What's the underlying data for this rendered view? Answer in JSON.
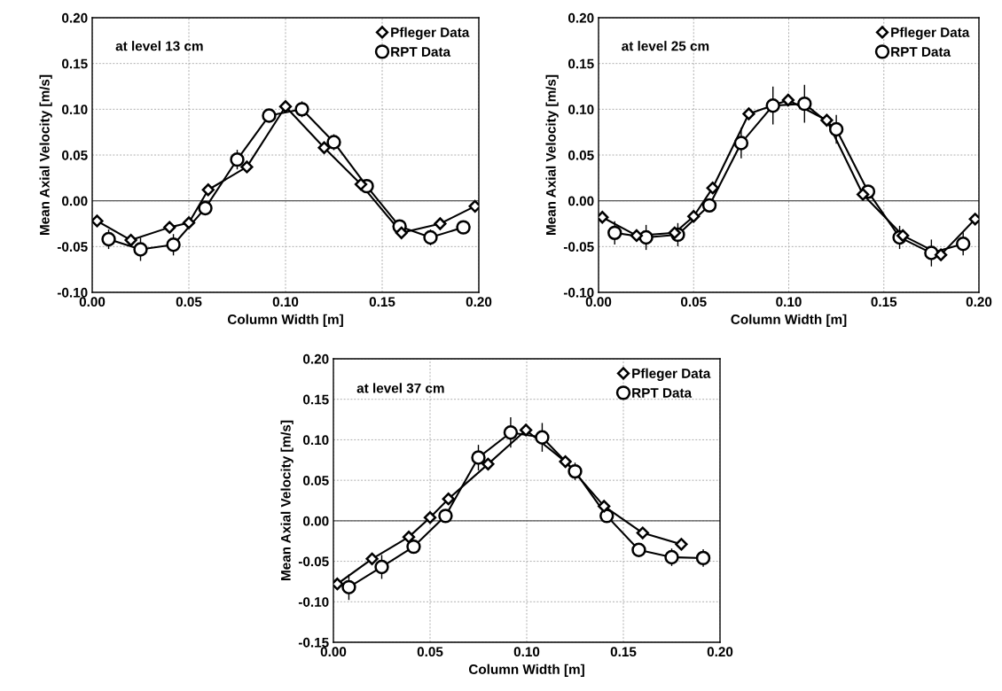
{
  "chart_data": [
    {
      "type": "line",
      "xlabel": "Column Width [m]",
      "ylabel": "Mean Axial Velocity [m/s]",
      "annotations": [
        "at level 13 cm"
      ],
      "ref_lines": [
        {
          "axis": "y",
          "value": 0,
          "color": "#555555"
        }
      ],
      "xlim": [
        0,
        0.2
      ],
      "ylim": [
        -0.1,
        0.2
      ],
      "xticks": [
        {
          "value": 0,
          "label": "0.00"
        },
        {
          "value": 0.05,
          "label": "0.05"
        },
        {
          "value": 0.1,
          "label": "0.10"
        },
        {
          "value": 0.15,
          "label": "0.15"
        },
        {
          "value": 0.2,
          "label": "0.20"
        }
      ],
      "yticks": [
        {
          "value": -0.1,
          "label": "-0.10"
        },
        {
          "value": -0.05,
          "label": "-0.05"
        },
        {
          "value": 0,
          "label": "0.00"
        },
        {
          "value": 0.05,
          "label": "0.05"
        },
        {
          "value": 0.1,
          "label": "0.10"
        },
        {
          "value": 0.15,
          "label": "0.15"
        },
        {
          "value": 0.2,
          "label": "0.20"
        }
      ],
      "grid": true,
      "legend": "top right",
      "series": [
        {
          "name": "Pfleger Data",
          "color": "#000000",
          "marker": "diamond",
          "x": [
            0.0025,
            0.02,
            0.04,
            0.05,
            0.06,
            0.08,
            0.1,
            0.12,
            0.139,
            0.16,
            0.18,
            0.198
          ],
          "values": [
            -0.022,
            -0.043,
            -0.029,
            -0.024,
            0.012,
            0.037,
            0.103,
            0.058,
            0.018,
            -0.035,
            -0.025,
            -0.006
          ]
        },
        {
          "name": "RPT Data",
          "color": "#000000",
          "marker": "circle",
          "x": [
            0.0085,
            0.025,
            0.042,
            0.0585,
            0.075,
            0.0915,
            0.1085,
            0.125,
            0.142,
            0.159,
            0.175,
            0.192
          ],
          "values": [
            -0.042,
            -0.053,
            -0.048,
            -0.008,
            0.045,
            0.093,
            0.1,
            0.064,
            0.016,
            -0.028,
            -0.04,
            -0.029
          ],
          "errors": [
            0.01,
            0.012,
            0.011,
            null,
            0.01,
            null,
            0.008,
            0.008,
            null,
            null,
            0.008,
            0.006
          ]
        }
      ]
    },
    {
      "type": "line",
      "xlabel": "Column Width [m]",
      "ylabel": "Mean Axial Velocity [m/s]",
      "annotations": [
        "at level 25 cm"
      ],
      "ref_lines": [
        {
          "axis": "y",
          "value": 0,
          "color": "#555555"
        }
      ],
      "xlim": [
        0,
        0.2
      ],
      "ylim": [
        -0.1,
        0.2
      ],
      "xticks": [
        {
          "value": 0,
          "label": "0.00"
        },
        {
          "value": 0.05,
          "label": "0.05"
        },
        {
          "value": 0.1,
          "label": "0.10"
        },
        {
          "value": 0.15,
          "label": "0.15"
        },
        {
          "value": 0.2,
          "label": "0.20"
        }
      ],
      "yticks": [
        {
          "value": -0.1,
          "label": "-0.10"
        },
        {
          "value": -0.05,
          "label": "-0.05"
        },
        {
          "value": 0,
          "label": "0.00"
        },
        {
          "value": 0.05,
          "label": "0.05"
        },
        {
          "value": 0.1,
          "label": "0.10"
        },
        {
          "value": 0.15,
          "label": "0.15"
        },
        {
          "value": 0.2,
          "label": "0.20"
        }
      ],
      "grid": true,
      "legend": "top right",
      "series": [
        {
          "name": "Pfleger Data",
          "color": "#000000",
          "marker": "diamond",
          "x": [
            0.002,
            0.02,
            0.04,
            0.05,
            0.06,
            0.079,
            0.0997,
            0.12,
            0.139,
            0.16,
            0.18,
            0.198
          ],
          "values": [
            -0.018,
            -0.038,
            -0.035,
            -0.017,
            0.014,
            0.095,
            0.11,
            0.088,
            0.007,
            -0.038,
            -0.059,
            -0.02
          ]
        },
        {
          "name": "RPT Data",
          "color": "#000000",
          "marker": "circle",
          "x": [
            0.0085,
            0.025,
            0.0417,
            0.0583,
            0.075,
            0.0917,
            0.1083,
            0.125,
            0.1417,
            0.1583,
            0.175,
            0.1917
          ],
          "values": [
            -0.035,
            -0.04,
            -0.037,
            -0.005,
            0.063,
            0.104,
            0.106,
            0.078,
            0.01,
            -0.04,
            -0.057,
            -0.047
          ],
          "errors": [
            0.012,
            0.013,
            0.012,
            null,
            0.016,
            0.02,
            0.02,
            0.015,
            null,
            0.012,
            0.014,
            0.012
          ]
        }
      ]
    },
    {
      "type": "line",
      "xlabel": "Column Width [m]",
      "ylabel": "Mean Axial Velocity [m/s]",
      "annotations": [
        "at level 37 cm"
      ],
      "ref_lines": [
        {
          "axis": "y",
          "value": 0,
          "color": "#555555"
        }
      ],
      "xlim": [
        0,
        0.2
      ],
      "ylim": [
        -0.15,
        0.2
      ],
      "xticks": [
        {
          "value": 0,
          "label": "0.00"
        },
        {
          "value": 0.05,
          "label": "0.05"
        },
        {
          "value": 0.1,
          "label": "0.10"
        },
        {
          "value": 0.15,
          "label": "0.15"
        },
        {
          "value": 0.2,
          "label": "0.20"
        }
      ],
      "yticks": [
        {
          "value": -0.15,
          "label": "-0.15"
        },
        {
          "value": -0.1,
          "label": "-0.10"
        },
        {
          "value": -0.05,
          "label": "-0.05"
        },
        {
          "value": 0,
          "label": "0.00"
        },
        {
          "value": 0.05,
          "label": "0.05"
        },
        {
          "value": 0.1,
          "label": "0.10"
        },
        {
          "value": 0.15,
          "label": "0.15"
        },
        {
          "value": 0.2,
          "label": "0.20"
        }
      ],
      "grid": true,
      "legend": "top right",
      "series": [
        {
          "name": "Pfleger Data",
          "color": "#000000",
          "marker": "diamond",
          "x": [
            0.002,
            0.02,
            0.039,
            0.05,
            0.0595,
            0.08,
            0.0996,
            0.12,
            0.14,
            0.16,
            0.18
          ],
          "values": [
            -0.078,
            -0.047,
            -0.02,
            0.004,
            0.027,
            0.07,
            0.112,
            0.073,
            0.018,
            -0.015,
            -0.029
          ]
        },
        {
          "name": "RPT Data",
          "color": "#000000",
          "marker": "circle",
          "x": [
            0.008,
            0.025,
            0.0415,
            0.058,
            0.075,
            0.0917,
            0.108,
            0.125,
            0.1414,
            0.158,
            0.175,
            0.1913
          ],
          "values": [
            -0.082,
            -0.057,
            -0.032,
            0.006,
            0.078,
            0.109,
            0.103,
            0.061,
            0.006,
            -0.036,
            -0.045,
            -0.046
          ],
          "errors": [
            0.015,
            0.014,
            null,
            null,
            0.015,
            0.018,
            0.017,
            0.01,
            null,
            0.007,
            0.01,
            0.01
          ]
        }
      ]
    }
  ]
}
